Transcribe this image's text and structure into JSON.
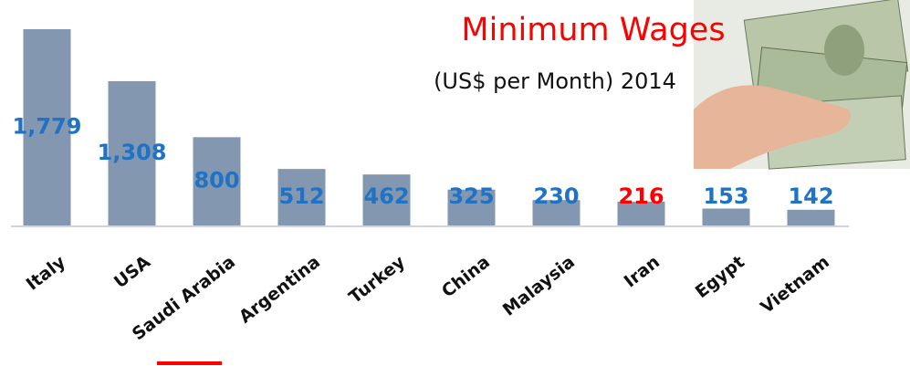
{
  "chart_data": {
    "type": "bar",
    "title": "Minimum Wages",
    "subtitle": "(US$ per Month) 2014",
    "categories": [
      "Italy",
      "USA",
      "Saudi Arabia",
      "Argentina",
      "Turkey",
      "China",
      "Malaysia",
      "Iran",
      "Egypt",
      "Vietnam"
    ],
    "values": [
      1779,
      1308,
      800,
      512,
      462,
      325,
      230,
      216,
      153,
      142
    ],
    "value_labels": [
      "1,779",
      "1,308",
      "800",
      "512",
      "462",
      "325",
      "230",
      "216",
      "153",
      "142"
    ],
    "value_label_colors": [
      "#1f72c4",
      "#1f72c4",
      "#1f72c4",
      "#1f72c4",
      "#1f72c4",
      "#1f72c4",
      "#1f72c4",
      "#ff0000",
      "#1f72c4",
      "#1f72c4"
    ],
    "color": "#8497b0"
  }
}
